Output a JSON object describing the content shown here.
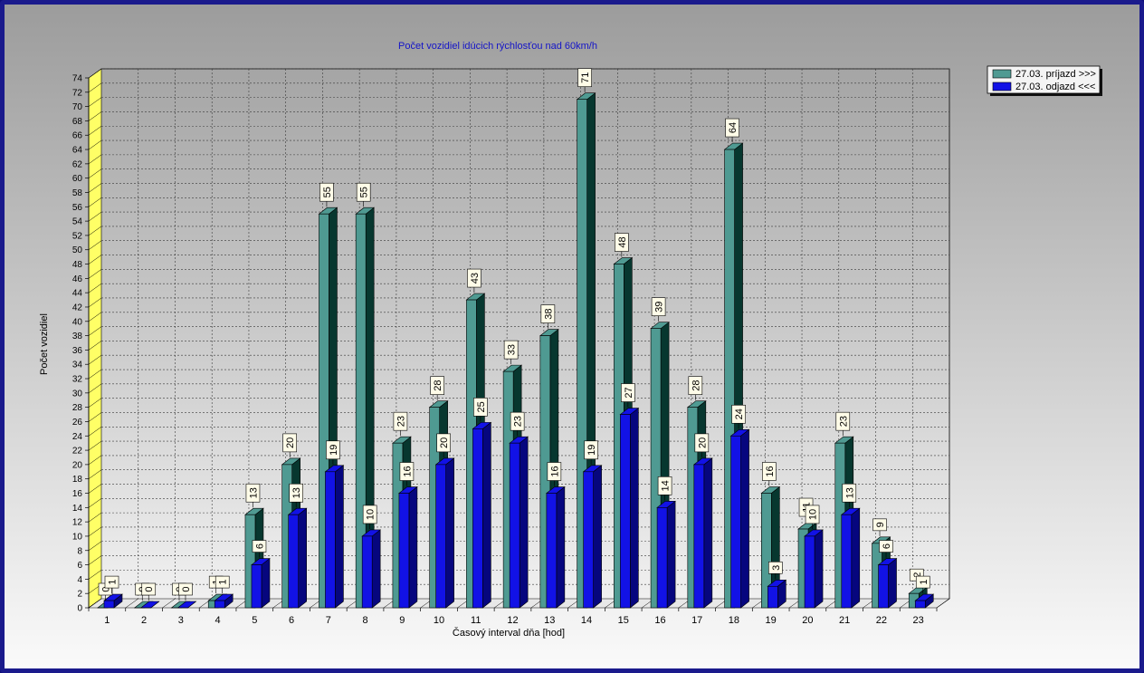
{
  "chart_data": {
    "type": "bar",
    "title": "Počet vozidiel idúcich rýchlosťou nad 60km/h",
    "xlabel": "Časový interval dňa [hod]",
    "ylabel": "Počet vozidiel",
    "ylim": [
      0,
      74
    ],
    "yticks": [
      0,
      2,
      4,
      6,
      8,
      10,
      12,
      14,
      16,
      18,
      20,
      22,
      24,
      26,
      28,
      30,
      32,
      34,
      36,
      38,
      40,
      42,
      44,
      46,
      48,
      50,
      52,
      54,
      56,
      58,
      60,
      62,
      64,
      66,
      68,
      70,
      72,
      74
    ],
    "categories": [
      "1",
      "2",
      "3",
      "4",
      "5",
      "6",
      "7",
      "8",
      "9",
      "10",
      "11",
      "12",
      "13",
      "14",
      "15",
      "16",
      "17",
      "18",
      "19",
      "20",
      "21",
      "22",
      "23"
    ],
    "legend_position": "top-right",
    "grid": true,
    "series": [
      {
        "name": "27.03.  príjazd >>>",
        "color": "#4f9a92",
        "side_color": "#07372f",
        "values": [
          0,
          0,
          0,
          1,
          13,
          20,
          55,
          55,
          23,
          28,
          43,
          33,
          38,
          71,
          48,
          39,
          28,
          64,
          16,
          11,
          23,
          9,
          2
        ]
      },
      {
        "name": "27.03.  odjazd <<<",
        "color": "#1212e6",
        "side_color": "#06067e",
        "values": [
          1,
          0,
          0,
          1,
          6,
          13,
          19,
          10,
          16,
          20,
          25,
          23,
          16,
          19,
          27,
          14,
          20,
          24,
          3,
          10,
          13,
          6,
          1
        ]
      }
    ]
  }
}
